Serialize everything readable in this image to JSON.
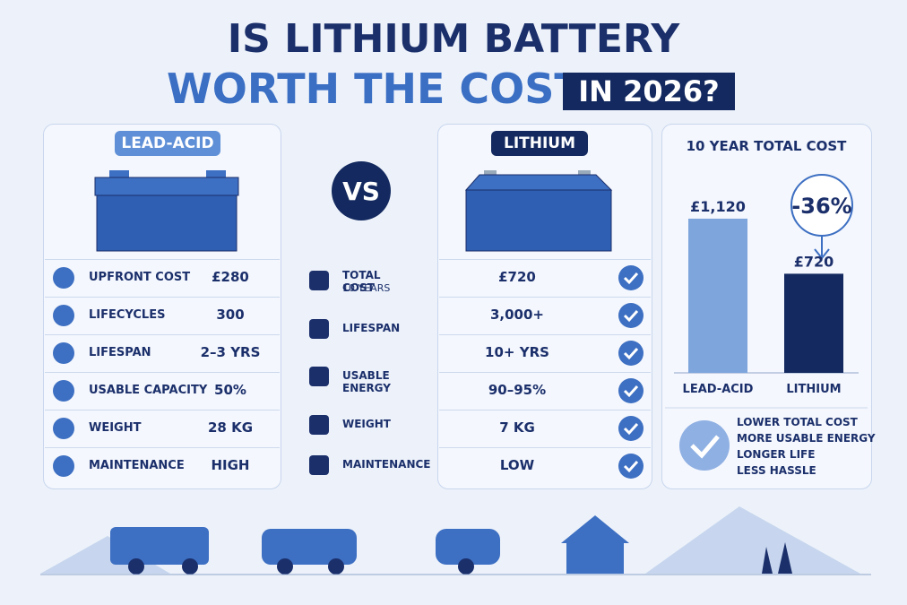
{
  "header": {
    "line1": "IS LITHIUM BATTERY",
    "line2": "WORTH THE COST",
    "badge": "IN 2026?"
  },
  "lead_acid": {
    "label": "LEAD-ACID",
    "rows": [
      {
        "label": "UPFRONT COST",
        "value": "£280"
      },
      {
        "label": "LIFECYCLES",
        "value": "300"
      },
      {
        "label": "LIFESPAN",
        "value": "2–3 YRS"
      },
      {
        "label": "USABLE CAPACITY",
        "value": "50%"
      },
      {
        "label": "WEIGHT",
        "value": "28 KG"
      },
      {
        "label": "MAINTENANCE",
        "value": "HIGH"
      }
    ]
  },
  "vs": "VS",
  "middle_labels": [
    {
      "label": "TOTAL COST",
      "sub": "10 YEARS"
    },
    {
      "label": "LIFESPAN"
    },
    {
      "label": "USABLE ENERGY"
    },
    {
      "label": "WEIGHT"
    },
    {
      "label": "MAINTENANCE"
    }
  ],
  "lithium": {
    "label": "LITHIUM",
    "values": [
      "£720",
      "3,000+",
      "10+ YRS",
      "90–95%",
      "7 KG",
      "LOW"
    ]
  },
  "cost_chart": {
    "type": "bar",
    "title": "10 YEAR TOTAL COST",
    "categories": [
      "LEAD-ACID",
      "LITHIUM"
    ],
    "values": [
      1120,
      720
    ],
    "value_labels": [
      "£1,120",
      "£720"
    ],
    "colors": [
      "#7ea6dd",
      "#13295f"
    ],
    "annotation": "-36%"
  },
  "benefits": [
    "LOWER TOTAL COST",
    "MORE USABLE ENERGY",
    "LONGER LIFE",
    "LESS HASSLE"
  ]
}
